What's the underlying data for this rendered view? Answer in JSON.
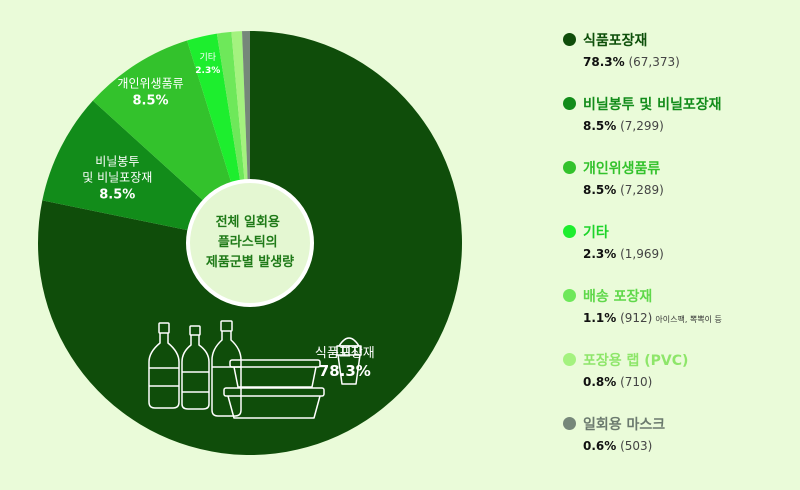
{
  "chart_data": {
    "type": "pie",
    "title": "전체 일회용\n플라스틱의\n제품군별 발생량",
    "slices": [
      {
        "name": "식품포장재",
        "percent": 78.3,
        "count": "67,373",
        "pct_label": "78.3%",
        "count_label": "(67,373)",
        "color": "#0f4d0a",
        "text_color": "#0d4f0a",
        "chart_label": "식품포장재",
        "chart_value": "78.3%"
      },
      {
        "name": "비닐봉투 및 비닐포장재",
        "percent": 8.5,
        "count": "7,299",
        "pct_label": "8.5%",
        "count_label": "(7,299)",
        "color": "#128c1a",
        "text_color": "#128c1a",
        "chart_label": "비닐봉투\n및 비닐포장재",
        "chart_value": "8.5%"
      },
      {
        "name": "개인위생품류",
        "percent": 8.5,
        "count": "7,289",
        "pct_label": "8.5%",
        "count_label": "(7,289)",
        "color": "#33c22c",
        "text_color": "#33c22c",
        "chart_label": "개인위생품류",
        "chart_value": "8.5%"
      },
      {
        "name": "기타",
        "percent": 2.3,
        "count": "1,969",
        "pct_label": "2.3%",
        "count_label": "(1,969)",
        "color": "#1dee2e",
        "text_color": "#1dd42a",
        "chart_label": "기타",
        "chart_value": "2.3%"
      },
      {
        "name": "배송 포장재",
        "percent": 1.1,
        "count": "912",
        "pct_label": "1.1%",
        "count_label": "(912)",
        "note": "아이스팩, 뽁뽁이 등",
        "color": "#6ee85a",
        "text_color": "#5fd84a"
      },
      {
        "name": "포장용 랩 (PVC)",
        "percent": 0.8,
        "count": "710",
        "pct_label": "0.8%",
        "count_label": "(710)",
        "color": "#a4f27f",
        "text_color": "#8ee66a"
      },
      {
        "name": "일회용 마스크",
        "percent": 0.6,
        "count": "503",
        "pct_label": "0.6%",
        "count_label": "(503)",
        "color": "#76877a",
        "text_color": "#6b7a6e"
      }
    ]
  },
  "colors": {
    "background": "#eafbd9",
    "center": "#e4f7d2",
    "icon_stroke": "#ffffff"
  },
  "icons": [
    "bottle-icon",
    "bottle-icon",
    "bottle-icon",
    "food-container-icon",
    "food-container-icon",
    "cup-icon"
  ]
}
